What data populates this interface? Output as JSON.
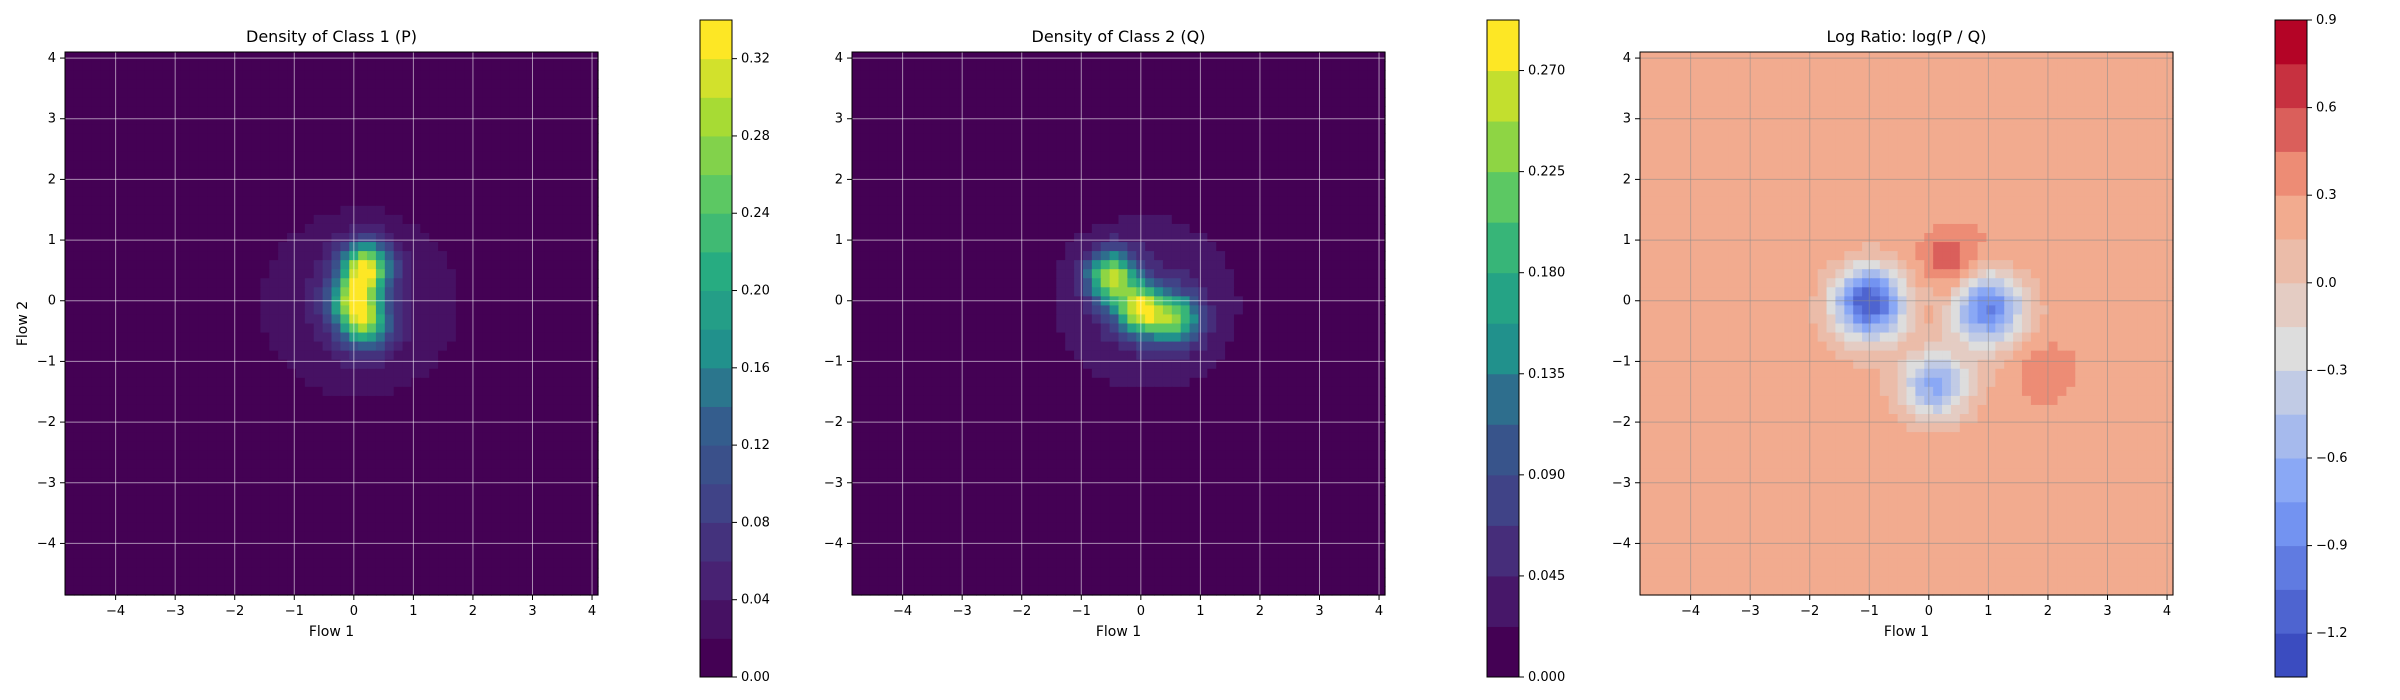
{
  "chart_data": [
    {
      "type": "heatmap",
      "title": "Density of Class 1 (P)",
      "xlabel": "Flow 1",
      "ylabel": "Flow 2",
      "xlim": [
        -4.85,
        4.1
      ],
      "ylim": [
        -4.85,
        4.1
      ],
      "xticks": [
        -4,
        -3,
        -2,
        -1,
        0,
        1,
        2,
        3,
        4
      ],
      "yticks": [
        -4,
        -3,
        -2,
        -1,
        0,
        1,
        2,
        3,
        4
      ],
      "grid": true,
      "colormap": "viridis",
      "colorbar": {
        "range": [
          0,
          0.34
        ],
        "ticks": [
          0.0,
          0.04,
          0.08,
          0.12,
          0.16,
          0.2,
          0.24,
          0.28,
          0.32
        ],
        "tick_labels": [
          "0.00",
          "0.04",
          "0.08",
          "0.12",
          "0.16",
          "0.20",
          "0.24",
          "0.28",
          "0.32"
        ],
        "levels": 17
      },
      "density_peaks": [
        {
          "x": 0.2,
          "y": 0.55,
          "value": 0.33
        },
        {
          "x": 0.0,
          "y": 0.0,
          "value": 0.26
        },
        {
          "x": 0.2,
          "y": -0.4,
          "value": 0.24
        }
      ]
    },
    {
      "type": "heatmap",
      "title": "Density of Class 2 (Q)",
      "xlabel": "Flow 1",
      "ylabel": "",
      "xlim": [
        -4.85,
        4.1
      ],
      "ylim": [
        -4.85,
        4.1
      ],
      "xticks": [
        -4,
        -3,
        -2,
        -1,
        0,
        1,
        2,
        3,
        4
      ],
      "yticks": [
        -4,
        -3,
        -2,
        -1,
        0,
        1,
        2,
        3,
        4
      ],
      "grid": true,
      "colormap": "viridis",
      "colorbar": {
        "range": [
          0,
          0.2925
        ],
        "ticks": [
          0.0,
          0.045,
          0.09,
          0.135,
          0.18,
          0.225,
          0.27
        ],
        "tick_labels": [
          "0.000",
          "0.045",
          "0.090",
          "0.135",
          "0.180",
          "0.225",
          "0.270"
        ],
        "levels": 13
      },
      "density_peaks": [
        {
          "x": -0.5,
          "y": 0.4,
          "value": 0.27
        },
        {
          "x": 0.0,
          "y": -0.15,
          "value": 0.28
        },
        {
          "x": 0.6,
          "y": -0.3,
          "value": 0.22
        }
      ]
    },
    {
      "type": "heatmap",
      "title": "Log Ratio: log(P / Q)",
      "xlabel": "Flow 1",
      "ylabel": "",
      "xlim": [
        -4.85,
        4.1
      ],
      "ylim": [
        -4.85,
        4.1
      ],
      "xticks": [
        -4,
        -3,
        -2,
        -1,
        0,
        1,
        2,
        3,
        4
      ],
      "yticks": [
        -4,
        -3,
        -2,
        -1,
        0,
        1,
        2,
        3,
        4
      ],
      "grid": true,
      "colormap": "coolwarm",
      "colorbar": {
        "range": [
          -1.35,
          0.9
        ],
        "ticks": [
          -1.2,
          -0.9,
          -0.6,
          -0.3,
          0.0,
          0.3,
          0.6,
          0.9
        ],
        "tick_labels": [
          "−1.2",
          "−0.9",
          "−0.6",
          "−0.3",
          "0.0",
          "0.3",
          "0.6",
          "0.9"
        ],
        "levels": 15
      },
      "regions": [
        {
          "x": -1.0,
          "y": 0.0,
          "value": -1.2
        },
        {
          "x": 1.0,
          "y": -0.1,
          "value": -0.9
        },
        {
          "x": 0.1,
          "y": -1.4,
          "value": -0.7
        },
        {
          "x": 0.3,
          "y": 0.7,
          "value": 0.6
        },
        {
          "x": 2.0,
          "y": -1.2,
          "value": 0.5
        }
      ]
    }
  ]
}
